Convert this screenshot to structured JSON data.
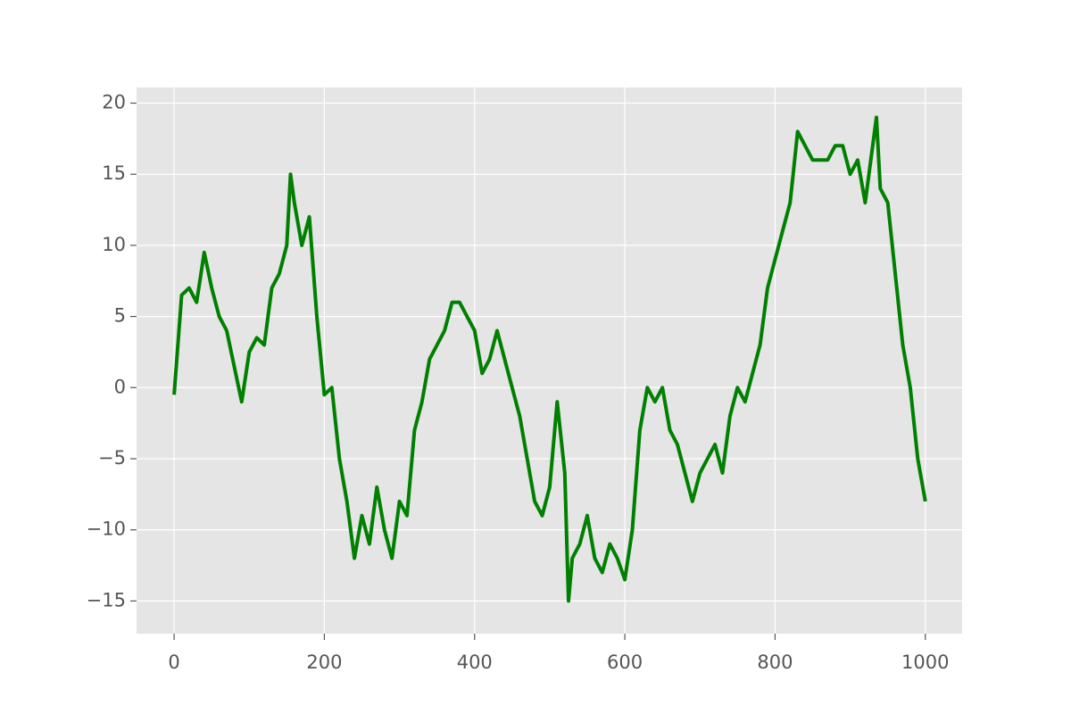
{
  "chart_data": {
    "type": "line",
    "x": [
      0,
      10,
      20,
      30,
      40,
      50,
      60,
      70,
      80,
      90,
      100,
      110,
      120,
      130,
      140,
      150,
      155,
      160,
      170,
      180,
      190,
      200,
      210,
      220,
      230,
      240,
      250,
      260,
      270,
      280,
      290,
      300,
      310,
      320,
      330,
      340,
      350,
      360,
      370,
      380,
      390,
      400,
      410,
      420,
      430,
      440,
      450,
      460,
      470,
      480,
      490,
      500,
      510,
      520,
      525,
      530,
      540,
      550,
      560,
      570,
      580,
      590,
      600,
      610,
      620,
      630,
      640,
      650,
      660,
      670,
      680,
      690,
      700,
      710,
      720,
      730,
      740,
      750,
      760,
      770,
      780,
      790,
      800,
      810,
      820,
      830,
      840,
      850,
      860,
      870,
      880,
      890,
      900,
      910,
      920,
      930,
      935,
      940,
      950,
      960,
      970,
      980,
      990,
      1000
    ],
    "series": [
      {
        "color": "#008000",
        "values": [
          -0.5,
          6.5,
          7,
          6,
          9.5,
          7,
          5,
          4,
          1.5,
          -1,
          2.5,
          3.5,
          3,
          7,
          8,
          10,
          15,
          13,
          10,
          12,
          5,
          -0.5,
          0,
          -5,
          -8,
          -12,
          -9,
          -11,
          -7,
          -10,
          -12,
          -8,
          -9,
          -3,
          -1,
          2,
          3,
          4,
          6,
          6,
          5,
          4,
          1,
          2,
          4,
          2,
          0,
          -2,
          -5,
          -8,
          -9,
          -7,
          -1,
          -6,
          -15,
          -12,
          -11,
          -9,
          -12,
          -13,
          -11,
          -12,
          -13.5,
          -10,
          -3,
          0,
          -1,
          0,
          -3,
          -4,
          -6,
          -8,
          -6,
          -5,
          -4,
          -6,
          -2,
          0,
          -1,
          1,
          3,
          7,
          9,
          11,
          13,
          18,
          17,
          16,
          16,
          16,
          17,
          17,
          15,
          16,
          13,
          17,
          19,
          14,
          13,
          8,
          3,
          0,
          -5,
          -8
        ]
      }
    ],
    "xlim": [
      -50,
      1049
    ],
    "ylim": [
      -17.3,
      21.1
    ],
    "xticks": [
      0,
      200,
      400,
      600,
      800,
      1000
    ],
    "yticks": [
      {
        "value": -15,
        "label": "−15"
      },
      {
        "value": -10,
        "label": "−10"
      },
      {
        "value": -5,
        "label": "−5"
      },
      0,
      5,
      10,
      15,
      20
    ],
    "grid": true
  }
}
